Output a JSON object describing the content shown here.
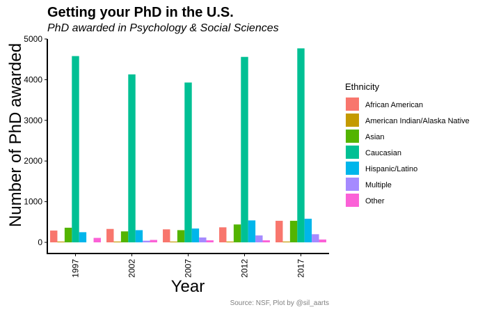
{
  "chart_data": {
    "type": "bar",
    "title": "Getting your PhD in the U.S.",
    "subtitle": "PhD awarded in Psychology & Social Sciences",
    "xlabel": "Year",
    "ylabel": "Number of PhD awarded",
    "categories": [
      "1997",
      "2002",
      "2007",
      "2012",
      "2017"
    ],
    "ylim": [
      0,
      5000
    ],
    "yticks": [
      0,
      1000,
      2000,
      3000,
      4000,
      5000
    ],
    "legend_title": "Ethnicity",
    "legend_position": "right",
    "grid": false,
    "series": [
      {
        "name": "African American",
        "color": "#F8766D",
        "values": [
          290,
          330,
          320,
          370,
          530
        ]
      },
      {
        "name": "American Indian/Alaska Native",
        "color": "#C49A00",
        "values": [
          20,
          20,
          20,
          20,
          20
        ]
      },
      {
        "name": "Asian",
        "color": "#53B400",
        "values": [
          360,
          270,
          300,
          440,
          530
        ]
      },
      {
        "name": "Caucasian",
        "color": "#00C094",
        "values": [
          4580,
          4130,
          3930,
          4560,
          4770
        ]
      },
      {
        "name": "Hispanic/Latino",
        "color": "#00B6EB",
        "values": [
          250,
          300,
          340,
          540,
          580
        ]
      },
      {
        "name": "Multiple",
        "color": "#A58AFF",
        "values": [
          null,
          40,
          120,
          170,
          200
        ]
      },
      {
        "name": "Other",
        "color": "#FB61D7",
        "values": [
          110,
          60,
          50,
          50,
          70
        ]
      }
    ]
  },
  "caption": "Source: NSF,  Plot by @sil_aarts"
}
